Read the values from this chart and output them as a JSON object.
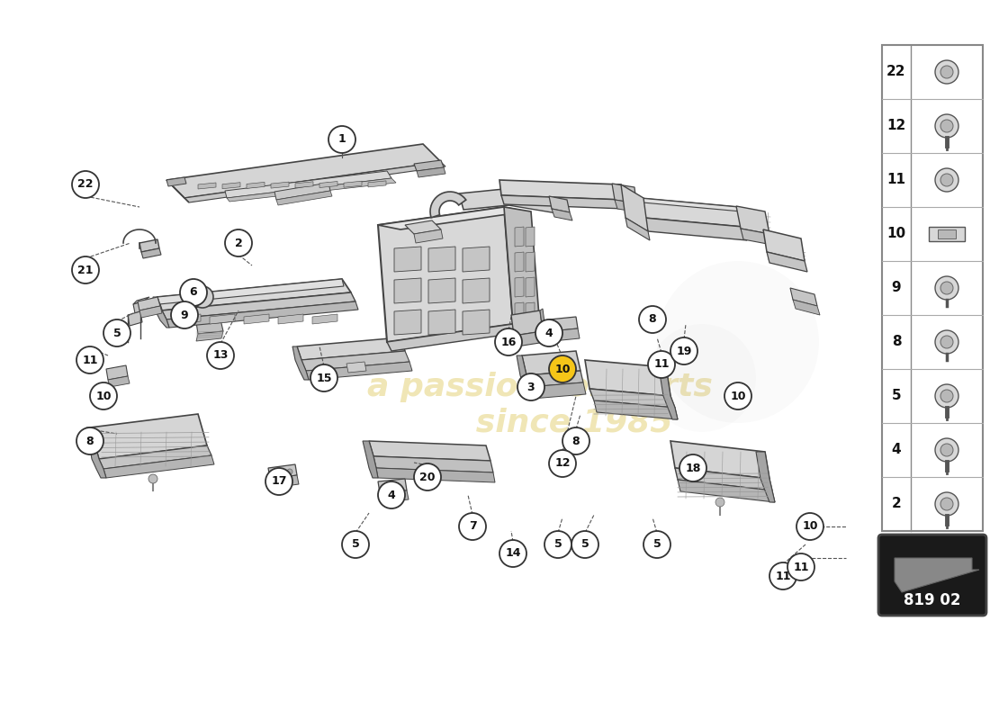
{
  "bg_color": "#ffffff",
  "badge_number": "819 02",
  "watermark_color": "#d4b830",
  "table_rows": [
    22,
    12,
    11,
    10,
    9,
    8,
    5,
    4,
    2
  ],
  "line_color": "#444444",
  "fill_light": "#e0e0e0",
  "fill_mid": "#cccccc",
  "fill_dark": "#b8b8b8",
  "circle_ec": "#333333",
  "circle_fc": "#ffffff",
  "yellow_fc": "#f5c518",
  "part_labels": [
    [
      1,
      380,
      645,
      false
    ],
    [
      2,
      265,
      530,
      false
    ],
    [
      3,
      590,
      370,
      false
    ],
    [
      4,
      435,
      250,
      false
    ],
    [
      4,
      610,
      430,
      false
    ],
    [
      5,
      130,
      430,
      false
    ],
    [
      5,
      395,
      195,
      false
    ],
    [
      5,
      650,
      195,
      false
    ],
    [
      6,
      215,
      475,
      false
    ],
    [
      7,
      525,
      215,
      false
    ],
    [
      8,
      100,
      310,
      false
    ],
    [
      8,
      640,
      310,
      false
    ],
    [
      8,
      725,
      445,
      false
    ],
    [
      9,
      205,
      450,
      false
    ],
    [
      10,
      115,
      360,
      false
    ],
    [
      10,
      625,
      390,
      true
    ],
    [
      10,
      820,
      360,
      false
    ],
    [
      11,
      100,
      400,
      false
    ],
    [
      11,
      735,
      395,
      false
    ],
    [
      11,
      870,
      160,
      false
    ],
    [
      12,
      625,
      285,
      false
    ],
    [
      13,
      245,
      405,
      false
    ],
    [
      14,
      570,
      185,
      false
    ],
    [
      15,
      360,
      380,
      false
    ],
    [
      16,
      565,
      420,
      false
    ],
    [
      17,
      310,
      265,
      false
    ],
    [
      18,
      770,
      280,
      false
    ],
    [
      19,
      760,
      410,
      false
    ],
    [
      20,
      475,
      270,
      false
    ],
    [
      21,
      95,
      500,
      false
    ],
    [
      22,
      95,
      595,
      false
    ]
  ],
  "leader_lines": [
    [
      380,
      632,
      370,
      610
    ],
    [
      265,
      517,
      290,
      500
    ],
    [
      590,
      357,
      590,
      390
    ],
    [
      435,
      263,
      415,
      280
    ],
    [
      610,
      417,
      595,
      410
    ],
    [
      130,
      443,
      148,
      455
    ],
    [
      395,
      208,
      405,
      230
    ],
    [
      650,
      208,
      670,
      230
    ],
    [
      215,
      462,
      220,
      470
    ],
    [
      525,
      228,
      510,
      248
    ],
    [
      100,
      323,
      120,
      330
    ],
    [
      640,
      323,
      650,
      345
    ],
    [
      725,
      432,
      730,
      440
    ],
    [
      205,
      463,
      210,
      470
    ],
    [
      115,
      373,
      125,
      380
    ],
    [
      625,
      403,
      615,
      415
    ],
    [
      820,
      373,
      830,
      390
    ],
    [
      100,
      413,
      112,
      420
    ],
    [
      735,
      408,
      730,
      420
    ],
    [
      870,
      173,
      910,
      195
    ],
    [
      625,
      298,
      640,
      315
    ],
    [
      245,
      418,
      255,
      425
    ],
    [
      570,
      198,
      565,
      220
    ],
    [
      360,
      393,
      360,
      400
    ],
    [
      565,
      433,
      568,
      420
    ],
    [
      310,
      278,
      310,
      285
    ],
    [
      770,
      293,
      770,
      305
    ],
    [
      760,
      423,
      760,
      440
    ],
    [
      475,
      283,
      465,
      295
    ],
    [
      95,
      513,
      100,
      515
    ],
    [
      95,
      582,
      100,
      560
    ]
  ]
}
